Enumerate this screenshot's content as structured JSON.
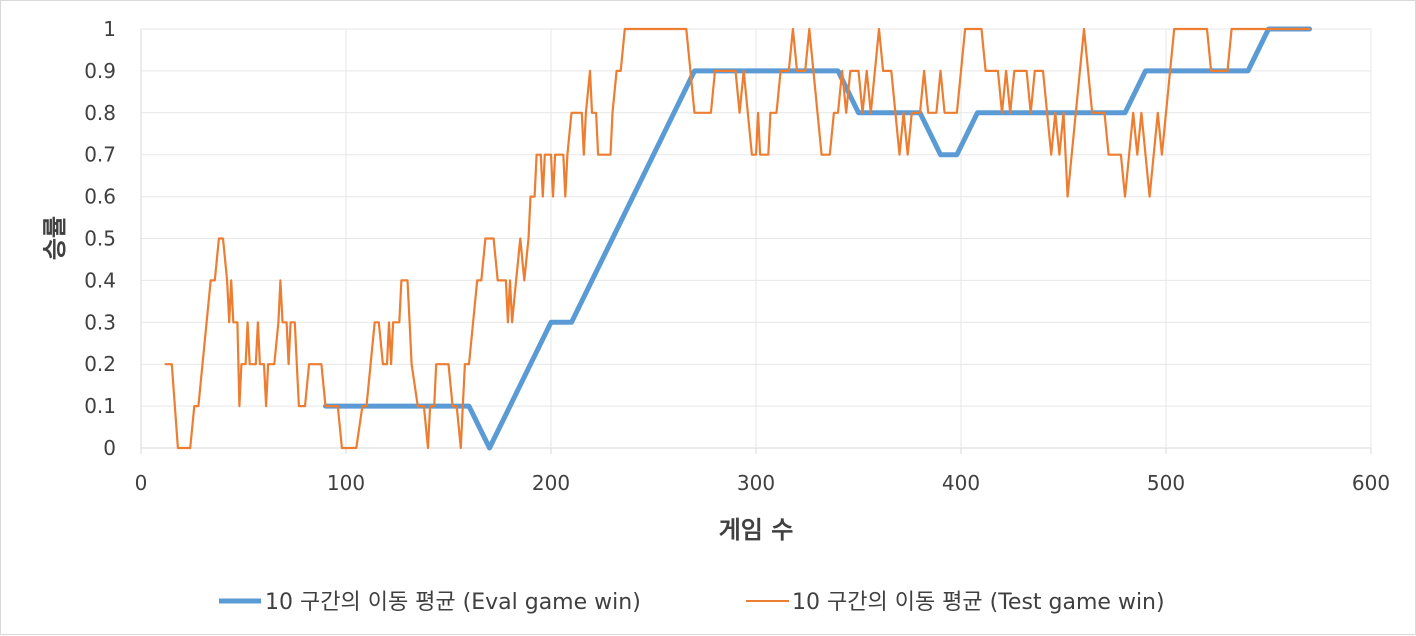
{
  "chart_data": {
    "type": "line",
    "title": "",
    "xlabel": "게임 수",
    "ylabel": "승률",
    "xlim": [
      0,
      600
    ],
    "ylim": [
      0,
      1
    ],
    "x_ticks": [
      "0",
      "100",
      "200",
      "300",
      "400",
      "500",
      "600"
    ],
    "y_ticks": [
      "0",
      "0.1",
      "0.2",
      "0.3",
      "0.4",
      "0.5",
      "0.6",
      "0.7",
      "0.8",
      "0.9",
      "1"
    ],
    "grid": true,
    "legend_position": "bottom",
    "series": [
      {
        "name": "10 구간의 이동 평균 (Eval game win)",
        "color": "#5b9bd5",
        "points": [
          [
            90,
            0.1
          ],
          [
            160,
            0.1
          ],
          [
            170,
            0.0
          ],
          [
            200,
            0.3
          ],
          [
            210,
            0.3
          ],
          [
            220,
            0.4
          ],
          [
            230,
            0.5
          ],
          [
            270,
            0.9
          ],
          [
            340,
            0.9
          ],
          [
            350,
            0.8
          ],
          [
            380,
            0.8
          ],
          [
            390,
            0.7
          ],
          [
            398,
            0.7
          ],
          [
            408,
            0.8
          ],
          [
            480,
            0.8
          ],
          [
            490,
            0.9
          ],
          [
            540,
            0.9
          ],
          [
            550,
            1.0
          ],
          [
            570,
            1.0
          ]
        ]
      },
      {
        "name": "10 구간의 이동 평균 (Test game win)",
        "color": "#ed7d31",
        "points": [
          [
            12,
            0.2
          ],
          [
            15,
            0.2
          ],
          [
            18,
            0.0
          ],
          [
            24,
            0.0
          ],
          [
            26,
            0.1
          ],
          [
            28,
            0.1
          ],
          [
            30,
            0.2
          ],
          [
            32,
            0.3
          ],
          [
            34,
            0.4
          ],
          [
            36,
            0.4
          ],
          [
            38,
            0.5
          ],
          [
            40,
            0.5
          ],
          [
            42,
            0.4
          ],
          [
            43,
            0.3
          ],
          [
            44,
            0.4
          ],
          [
            45,
            0.3
          ],
          [
            47,
            0.3
          ],
          [
            48,
            0.1
          ],
          [
            49,
            0.2
          ],
          [
            51,
            0.2
          ],
          [
            52,
            0.3
          ],
          [
            53,
            0.2
          ],
          [
            56,
            0.2
          ],
          [
            57,
            0.3
          ],
          [
            58,
            0.2
          ],
          [
            60,
            0.2
          ],
          [
            61,
            0.1
          ],
          [
            62,
            0.2
          ],
          [
            65,
            0.2
          ],
          [
            67,
            0.3
          ],
          [
            68,
            0.4
          ],
          [
            69,
            0.3
          ],
          [
            71,
            0.3
          ],
          [
            72,
            0.2
          ],
          [
            73,
            0.3
          ],
          [
            75,
            0.3
          ],
          [
            76,
            0.2
          ],
          [
            77,
            0.1
          ],
          [
            80,
            0.1
          ],
          [
            82,
            0.2
          ],
          [
            88,
            0.2
          ],
          [
            90,
            0.1
          ],
          [
            92,
            0.1
          ],
          [
            96,
            0.1
          ],
          [
            98,
            0.0
          ],
          [
            105,
            0.0
          ],
          [
            108,
            0.1
          ],
          [
            110,
            0.1
          ],
          [
            112,
            0.2
          ],
          [
            114,
            0.3
          ],
          [
            116,
            0.3
          ],
          [
            118,
            0.2
          ],
          [
            120,
            0.2
          ],
          [
            121,
            0.3
          ],
          [
            122,
            0.2
          ],
          [
            123,
            0.3
          ],
          [
            126,
            0.3
          ],
          [
            127,
            0.4
          ],
          [
            130,
            0.4
          ],
          [
            131,
            0.3
          ],
          [
            132,
            0.2
          ],
          [
            135,
            0.1
          ],
          [
            138,
            0.1
          ],
          [
            140,
            0.0
          ],
          [
            141,
            0.1
          ],
          [
            143,
            0.1
          ],
          [
            144,
            0.2
          ],
          [
            150,
            0.2
          ],
          [
            152,
            0.1
          ],
          [
            154,
            0.1
          ],
          [
            156,
            0.0
          ],
          [
            157,
            0.1
          ],
          [
            158,
            0.2
          ],
          [
            160,
            0.2
          ],
          [
            162,
            0.3
          ],
          [
            164,
            0.4
          ],
          [
            166,
            0.4
          ],
          [
            168,
            0.5
          ],
          [
            172,
            0.5
          ],
          [
            174,
            0.4
          ],
          [
            178,
            0.4
          ],
          [
            179,
            0.3
          ],
          [
            180,
            0.4
          ],
          [
            181,
            0.3
          ],
          [
            183,
            0.4
          ],
          [
            185,
            0.5
          ],
          [
            187,
            0.4
          ],
          [
            189,
            0.5
          ],
          [
            190,
            0.6
          ],
          [
            192,
            0.6
          ],
          [
            193,
            0.7
          ],
          [
            195,
            0.7
          ],
          [
            196,
            0.6
          ],
          [
            197,
            0.7
          ],
          [
            200,
            0.7
          ],
          [
            201,
            0.6
          ],
          [
            202,
            0.7
          ],
          [
            206,
            0.7
          ],
          [
            207,
            0.6
          ],
          [
            208,
            0.7
          ],
          [
            210,
            0.8
          ],
          [
            215,
            0.8
          ],
          [
            216,
            0.7
          ],
          [
            217,
            0.8
          ],
          [
            219,
            0.9
          ],
          [
            220,
            0.8
          ],
          [
            222,
            0.8
          ],
          [
            223,
            0.7
          ],
          [
            229,
            0.7
          ],
          [
            230,
            0.8
          ],
          [
            232,
            0.9
          ],
          [
            234,
            0.9
          ],
          [
            236,
            1.0
          ],
          [
            266,
            1.0
          ],
          [
            268,
            0.9
          ],
          [
            270,
            0.8
          ],
          [
            278,
            0.8
          ],
          [
            280,
            0.9
          ],
          [
            290,
            0.9
          ],
          [
            292,
            0.8
          ],
          [
            294,
            0.9
          ],
          [
            296,
            0.8
          ],
          [
            298,
            0.7
          ],
          [
            300,
            0.7
          ],
          [
            301,
            0.8
          ],
          [
            302,
            0.7
          ],
          [
            306,
            0.7
          ],
          [
            307,
            0.8
          ],
          [
            310,
            0.8
          ],
          [
            312,
            0.9
          ],
          [
            316,
            0.9
          ],
          [
            318,
            1.0
          ],
          [
            320,
            0.9
          ],
          [
            324,
            0.9
          ],
          [
            326,
            1.0
          ],
          [
            328,
            0.9
          ],
          [
            330,
            0.8
          ],
          [
            332,
            0.7
          ],
          [
            336,
            0.7
          ],
          [
            338,
            0.8
          ],
          [
            340,
            0.8
          ],
          [
            342,
            0.9
          ],
          [
            344,
            0.8
          ],
          [
            346,
            0.9
          ],
          [
            350,
            0.9
          ],
          [
            352,
            0.8
          ],
          [
            354,
            0.9
          ],
          [
            356,
            0.8
          ],
          [
            358,
            0.9
          ],
          [
            360,
            1.0
          ],
          [
            362,
            0.9
          ],
          [
            366,
            0.9
          ],
          [
            368,
            0.8
          ],
          [
            370,
            0.7
          ],
          [
            372,
            0.8
          ],
          [
            374,
            0.7
          ],
          [
            376,
            0.8
          ],
          [
            380,
            0.8
          ],
          [
            382,
            0.9
          ],
          [
            384,
            0.8
          ],
          [
            388,
            0.8
          ],
          [
            390,
            0.9
          ],
          [
            392,
            0.8
          ],
          [
            398,
            0.8
          ],
          [
            400,
            0.9
          ],
          [
            402,
            1.0
          ],
          [
            410,
            1.0
          ],
          [
            412,
            0.9
          ],
          [
            418,
            0.9
          ],
          [
            420,
            0.8
          ],
          [
            422,
            0.9
          ],
          [
            424,
            0.8
          ],
          [
            426,
            0.9
          ],
          [
            432,
            0.9
          ],
          [
            434,
            0.8
          ],
          [
            436,
            0.9
          ],
          [
            440,
            0.9
          ],
          [
            442,
            0.8
          ],
          [
            444,
            0.7
          ],
          [
            446,
            0.8
          ],
          [
            448,
            0.7
          ],
          [
            450,
            0.8
          ],
          [
            452,
            0.6
          ],
          [
            454,
            0.7
          ],
          [
            456,
            0.8
          ],
          [
            458,
            0.9
          ],
          [
            460,
            1.0
          ],
          [
            462,
            0.9
          ],
          [
            464,
            0.8
          ],
          [
            470,
            0.8
          ],
          [
            472,
            0.7
          ],
          [
            478,
            0.7
          ],
          [
            480,
            0.6
          ],
          [
            482,
            0.7
          ],
          [
            484,
            0.8
          ],
          [
            486,
            0.7
          ],
          [
            488,
            0.8
          ],
          [
            490,
            0.7
          ],
          [
            492,
            0.6
          ],
          [
            494,
            0.7
          ],
          [
            496,
            0.8
          ],
          [
            498,
            0.7
          ],
          [
            500,
            0.8
          ],
          [
            502,
            0.9
          ],
          [
            504,
            1.0
          ],
          [
            520,
            1.0
          ],
          [
            522,
            0.9
          ],
          [
            530,
            0.9
          ],
          [
            532,
            1.0
          ],
          [
            570,
            1.0
          ]
        ]
      }
    ]
  }
}
